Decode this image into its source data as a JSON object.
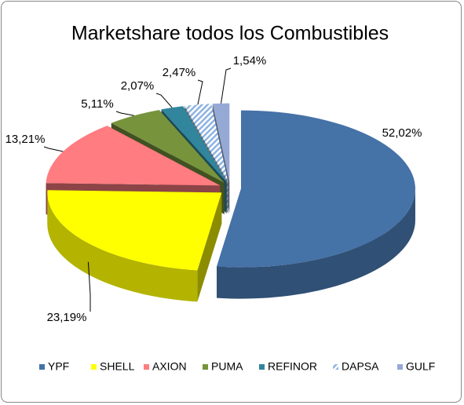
{
  "chart_data": {
    "type": "pie3d",
    "title": "Marketshare todos los Combustibles",
    "categories": [
      "YPF",
      "SHELL",
      "AXION",
      "PUMA",
      "REFINOR",
      "DAPSA",
      "GULF"
    ],
    "values": [
      52.02,
      23.19,
      13.21,
      5.11,
      2.07,
      2.47,
      1.54
    ],
    "value_labels": [
      "52,02%",
      "23,19%",
      "13,21%",
      "5,11%",
      "2,07%",
      "2,47%",
      "1,54%"
    ],
    "colors": [
      "#4572a7",
      "#ffff00",
      "#ff7c80",
      "#77933c",
      "#31859c",
      "#8db3e2",
      "#95a9d5"
    ],
    "hatched": [
      false,
      false,
      false,
      false,
      false,
      true,
      false
    ],
    "legend": "bottom"
  }
}
